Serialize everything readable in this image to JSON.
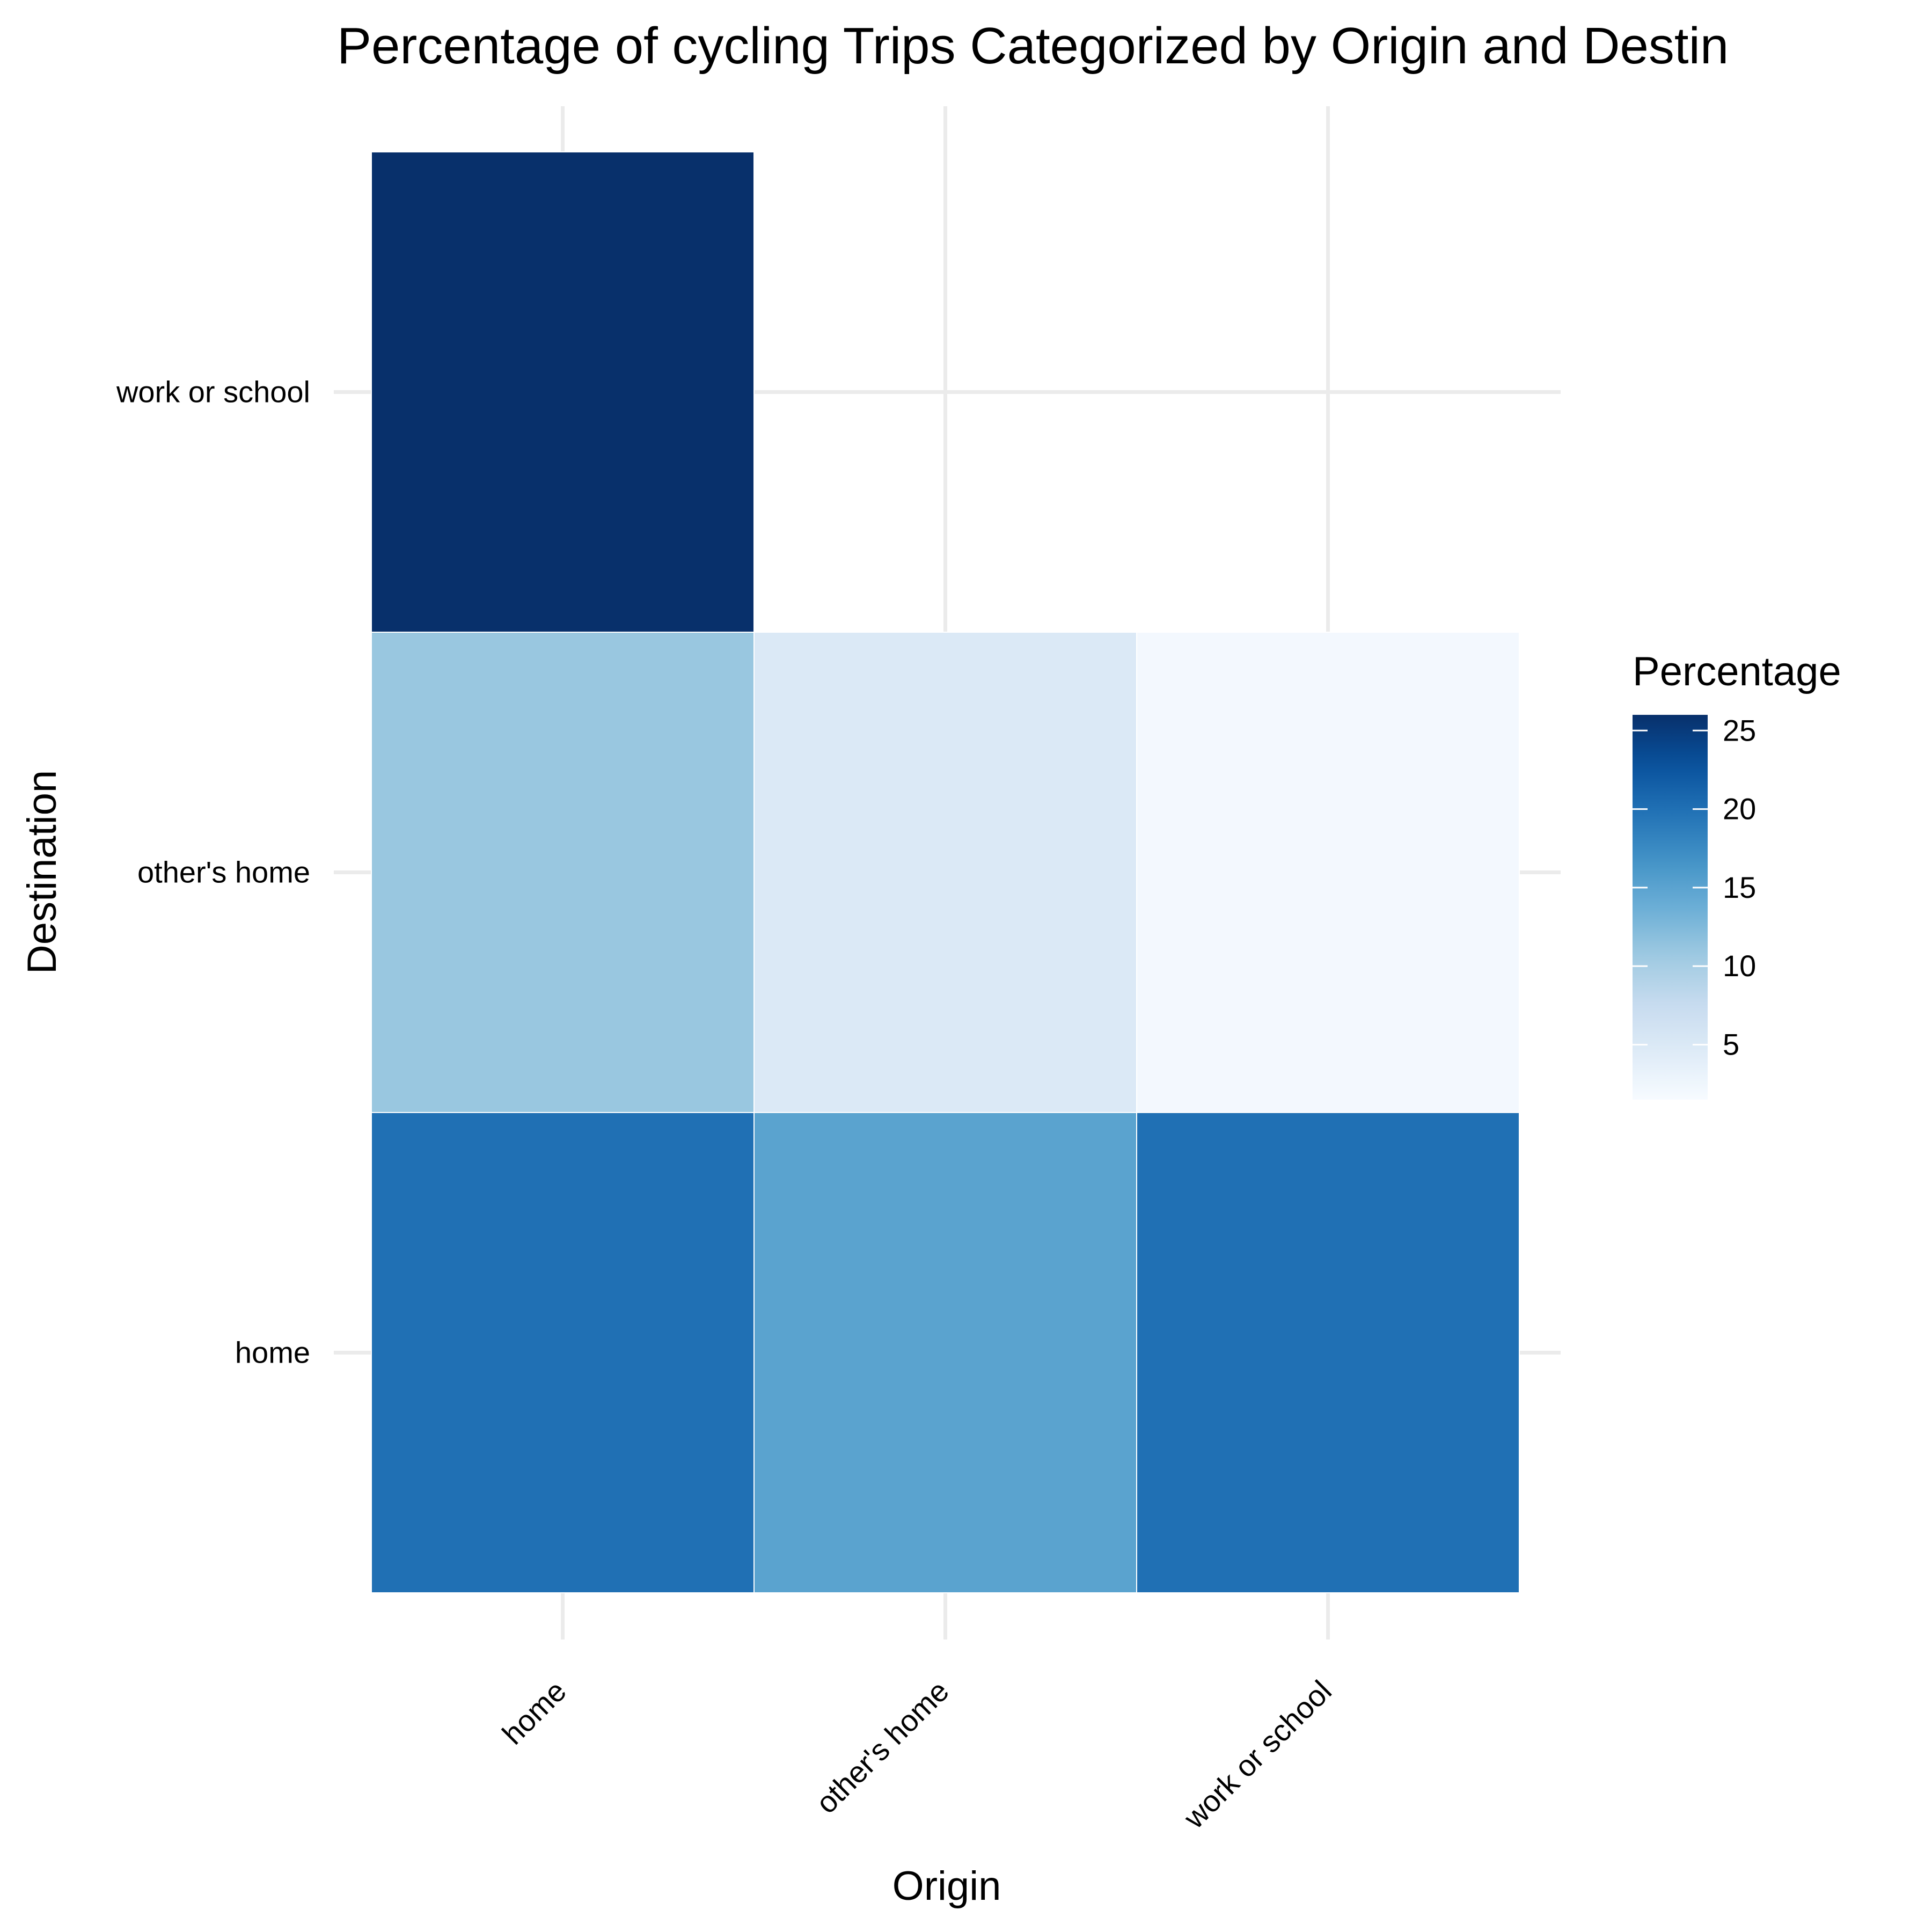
{
  "chart_data": {
    "type": "heatmap",
    "title": "Percentage of cycling Trips Categorized by Origin and Destin",
    "xlabel": "Origin",
    "ylabel": "Destination",
    "x_categories": [
      "home",
      "other's home",
      "work or school"
    ],
    "y_categories": [
      "home",
      "other's home",
      "work or school"
    ],
    "cells": [
      {
        "origin": "home",
        "destination": "home",
        "value": 20
      },
      {
        "origin": "home",
        "destination": "other's home",
        "value": 11
      },
      {
        "origin": "home",
        "destination": "work or school",
        "value": 26
      },
      {
        "origin": "other's home",
        "destination": "home",
        "value": 15
      },
      {
        "origin": "other's home",
        "destination": "other's home",
        "value": 5
      },
      {
        "origin": "work or school",
        "destination": "home",
        "value": 20
      },
      {
        "origin": "work or school",
        "destination": "other's home",
        "value": 2
      }
    ],
    "legend": {
      "title": "Percentage",
      "ticks": [
        5,
        10,
        15,
        20,
        25
      ],
      "range": [
        1.5,
        26
      ],
      "low_color": "#f7fbff",
      "high_color": "#08306b",
      "placement": "right"
    },
    "grid": true,
    "x_tick_rotation": -45
  }
}
